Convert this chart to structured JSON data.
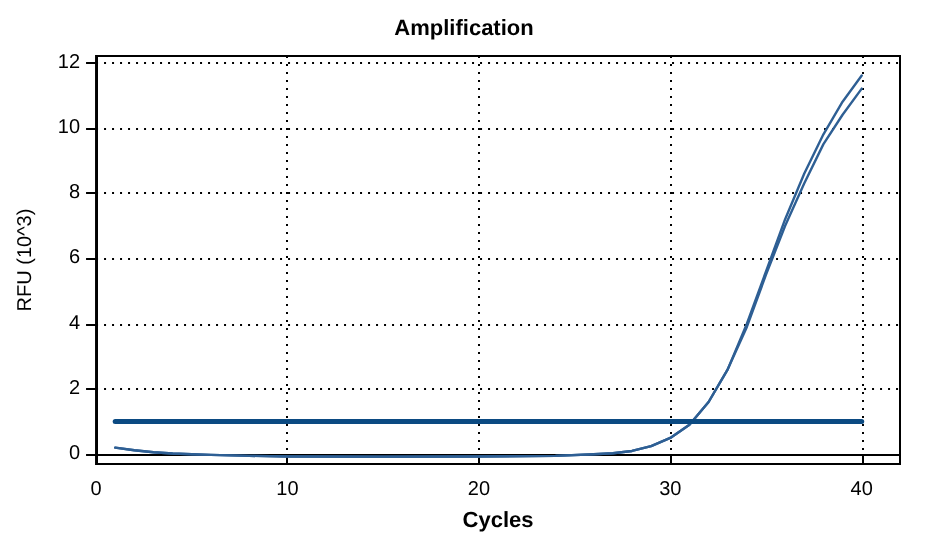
{
  "chart_data": {
    "type": "line",
    "title": "Amplification",
    "xlabel": "Cycles",
    "ylabel": "RFU (10^3)",
    "xlim": [
      0,
      42
    ],
    "xticks": [
      0,
      10,
      20,
      30,
      40
    ],
    "ylim": [
      -0.3,
      12.2
    ],
    "yticks": [
      0,
      2,
      4,
      6,
      8,
      10,
      12
    ],
    "grid": true,
    "marker": "none",
    "line_style": "solid",
    "series": [
      {
        "color": "#2e5f94",
        "x": [
          1,
          2,
          3,
          4,
          5,
          6,
          8,
          10,
          15,
          20,
          24,
          26,
          27,
          28,
          29,
          30,
          31,
          32,
          33,
          34,
          35,
          36,
          37,
          38,
          39,
          40
        ],
        "values": [
          0.2,
          0.12,
          0.06,
          0.02,
          0,
          -0.02,
          -0.05,
          -0.07,
          -0.08,
          -0.07,
          -0.05,
          0,
          0.03,
          0.1,
          0.25,
          0.5,
          0.9,
          1.6,
          2.6,
          4.0,
          5.6,
          7.2,
          8.6,
          9.8,
          10.8,
          11.6
        ]
      },
      {
        "color": "#2e5f94",
        "x": [
          1,
          2,
          3,
          4,
          5,
          6,
          8,
          10,
          15,
          20,
          24,
          26,
          27,
          28,
          29,
          30,
          31,
          32,
          33,
          34,
          35,
          36,
          37,
          38,
          39,
          40
        ],
        "values": [
          0.2,
          0.12,
          0.06,
          0.02,
          0,
          -0.02,
          -0.05,
          -0.07,
          -0.08,
          -0.07,
          -0.05,
          0,
          0.03,
          0.1,
          0.25,
          0.5,
          0.9,
          1.6,
          2.6,
          3.9,
          5.5,
          7.0,
          8.3,
          9.5,
          10.4,
          11.2
        ]
      },
      {
        "color": "#0b4a82",
        "x": [
          1,
          40
        ],
        "values": [
          1,
          1
        ]
      }
    ]
  }
}
